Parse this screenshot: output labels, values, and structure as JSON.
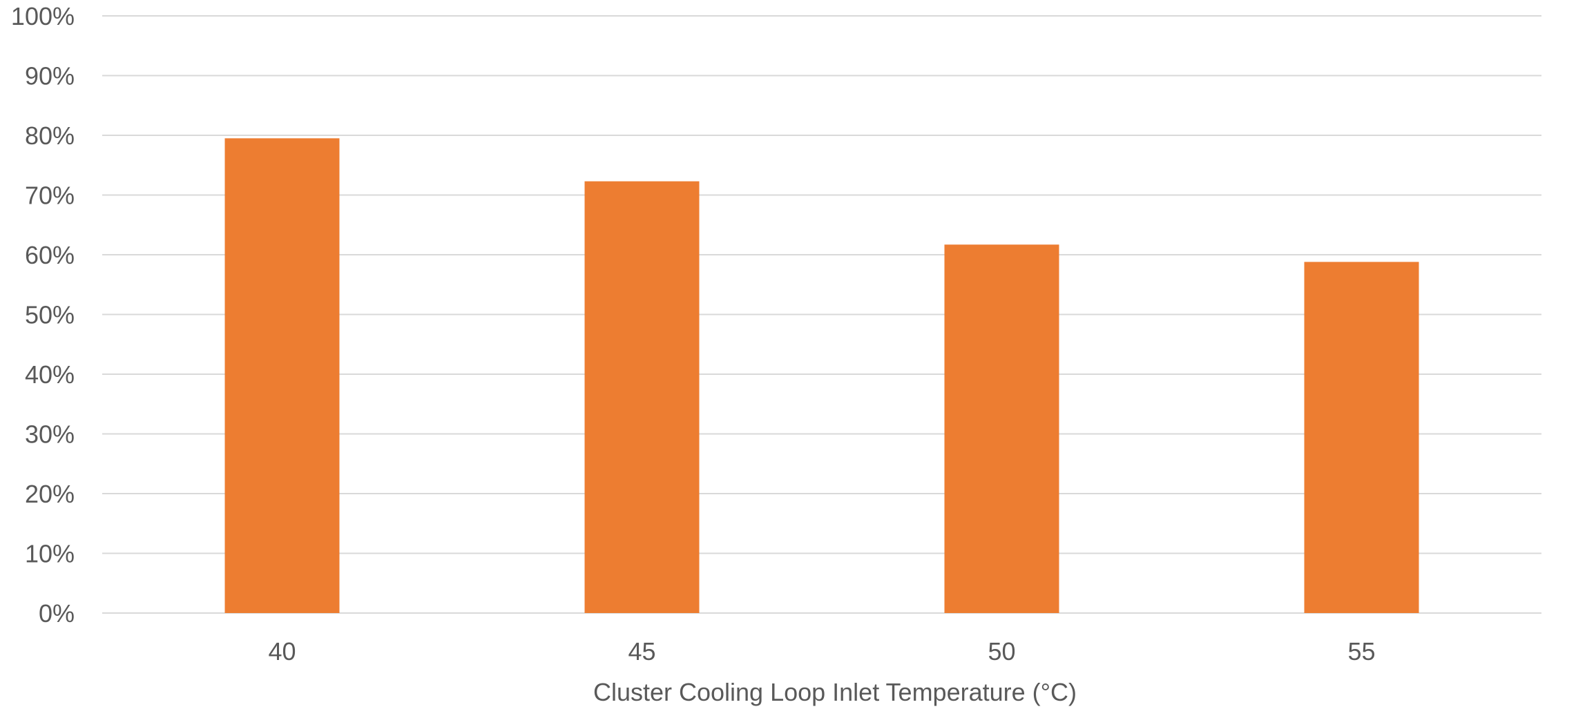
{
  "chart_data": {
    "type": "bar",
    "title": "",
    "xlabel": "Cluster Cooling Loop Inlet Temperature (°C)",
    "ylabel": "",
    "categories": [
      "40",
      "45",
      "50",
      "55"
    ],
    "series": [
      {
        "values": [
          0.795,
          0.723,
          0.617,
          0.588
        ],
        "color": "#ED7D31"
      }
    ],
    "ylim": [
      0,
      1
    ],
    "yticks": [
      0,
      0.1,
      0.2,
      0.3,
      0.4,
      0.5,
      0.6,
      0.7,
      0.8,
      0.9,
      1.0
    ],
    "ytick_labels": [
      "0%",
      "10%",
      "20%",
      "30%",
      "40%",
      "50%",
      "60%",
      "70%",
      "80%",
      "90%",
      "100%"
    ],
    "grid": true,
    "legend": "none"
  }
}
